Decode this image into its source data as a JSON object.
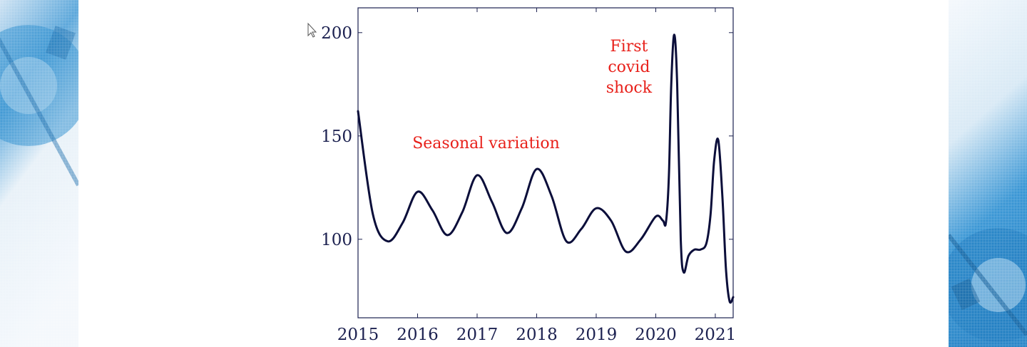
{
  "chart_data": {
    "type": "line",
    "title": "",
    "xlabel": "",
    "ylabel": "",
    "xlim": [
      2015,
      2021.3
    ],
    "ylim": [
      62,
      212
    ],
    "x_ticks": [
      "2015",
      "2016",
      "2017",
      "2018",
      "2019",
      "2020",
      "2021"
    ],
    "y_ticks": [
      "100",
      "150",
      "200"
    ],
    "grid": false,
    "series": [
      {
        "color": "#0b0e3a",
        "points": [
          [
            2015.0,
            162
          ],
          [
            2015.25,
            112
          ],
          [
            2015.5,
            99
          ],
          [
            2015.75,
            108
          ],
          [
            2016.0,
            123
          ],
          [
            2016.25,
            114
          ],
          [
            2016.5,
            102
          ],
          [
            2016.75,
            113
          ],
          [
            2017.0,
            131
          ],
          [
            2017.25,
            118
          ],
          [
            2017.5,
            103
          ],
          [
            2017.75,
            115
          ],
          [
            2018.0,
            134
          ],
          [
            2018.25,
            121
          ],
          [
            2018.5,
            99
          ],
          [
            2018.75,
            105
          ],
          [
            2019.0,
            115
          ],
          [
            2019.25,
            109
          ],
          [
            2019.5,
            94
          ],
          [
            2019.75,
            100
          ],
          [
            2020.0,
            111
          ],
          [
            2020.12,
            109
          ],
          [
            2020.17,
            108
          ],
          [
            2020.22,
            130
          ],
          [
            2020.26,
            175
          ],
          [
            2020.31,
            199
          ],
          [
            2020.36,
            175
          ],
          [
            2020.42,
            100
          ],
          [
            2020.47,
            84
          ],
          [
            2020.55,
            92
          ],
          [
            2020.65,
            95
          ],
          [
            2020.75,
            95
          ],
          [
            2020.85,
            98
          ],
          [
            2020.92,
            112
          ],
          [
            2020.98,
            138
          ],
          [
            2021.05,
            148
          ],
          [
            2021.12,
            120
          ],
          [
            2021.18,
            85
          ],
          [
            2021.24,
            70
          ],
          [
            2021.3,
            72
          ]
        ]
      }
    ],
    "annotations": [
      {
        "lines": [
          "Seasonal variation"
        ],
        "x": 2017.15,
        "y": 144,
        "align": "middle"
      },
      {
        "lines": [
          "First",
          "covid",
          "shock"
        ],
        "x": 2019.55,
        "y": 191,
        "align": "middle"
      }
    ],
    "annotation_color": "#e8201a",
    "axis_color": "#1c2150"
  }
}
